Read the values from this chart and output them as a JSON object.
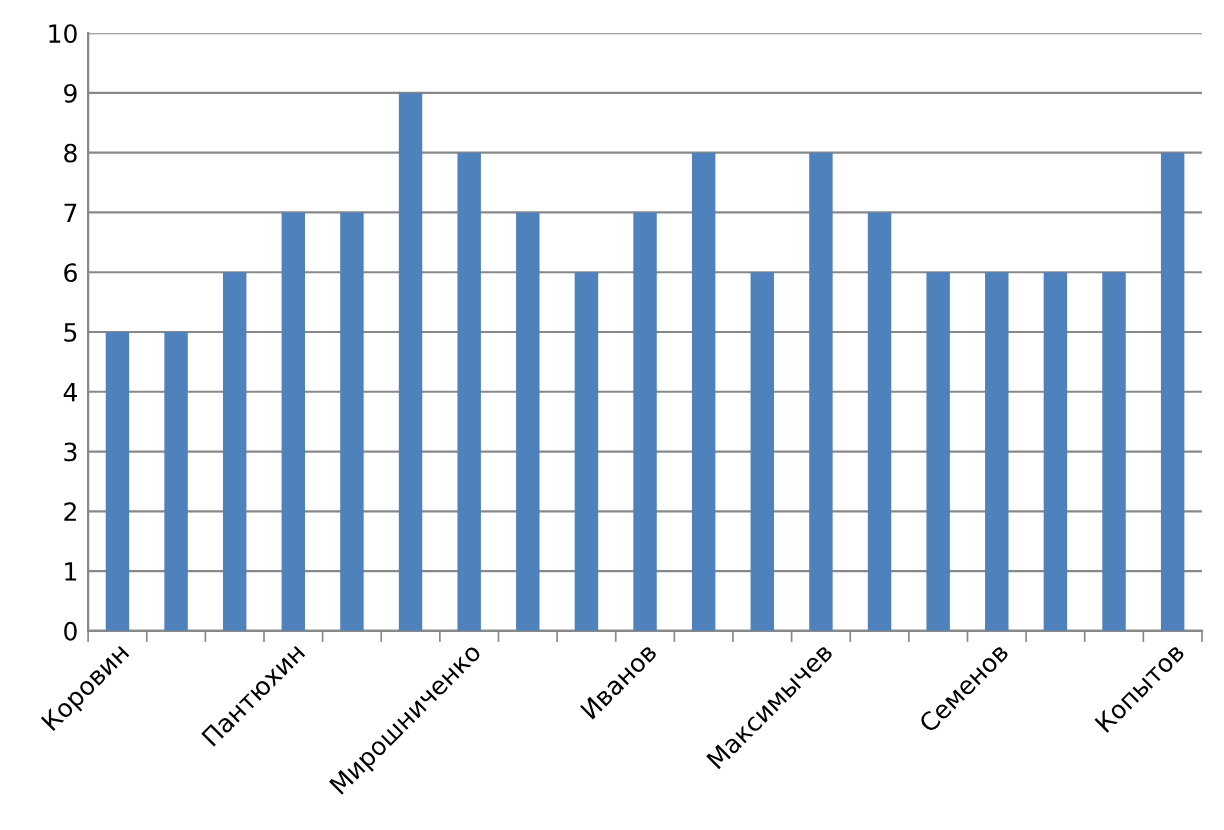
{
  "chart_data": {
    "type": "bar",
    "categories": [
      "Коровин",
      null,
      null,
      "Пантюхин",
      null,
      null,
      "Мирошниченко",
      null,
      null,
      "Иванов",
      null,
      null,
      "Максимычев",
      null,
      null,
      "Семенов",
      null,
      null,
      "Копытов"
    ],
    "values": [
      5,
      5,
      6,
      7,
      7,
      9,
      8,
      7,
      6,
      7,
      8,
      6,
      8,
      7,
      6,
      6,
      6,
      6,
      8
    ],
    "color": "#4f81bd",
    "ylim": [
      0,
      10
    ],
    "yticks": [
      0,
      1,
      2,
      3,
      4,
      5,
      6,
      7,
      8,
      9,
      10
    ],
    "grid": "y",
    "legend": false
  }
}
